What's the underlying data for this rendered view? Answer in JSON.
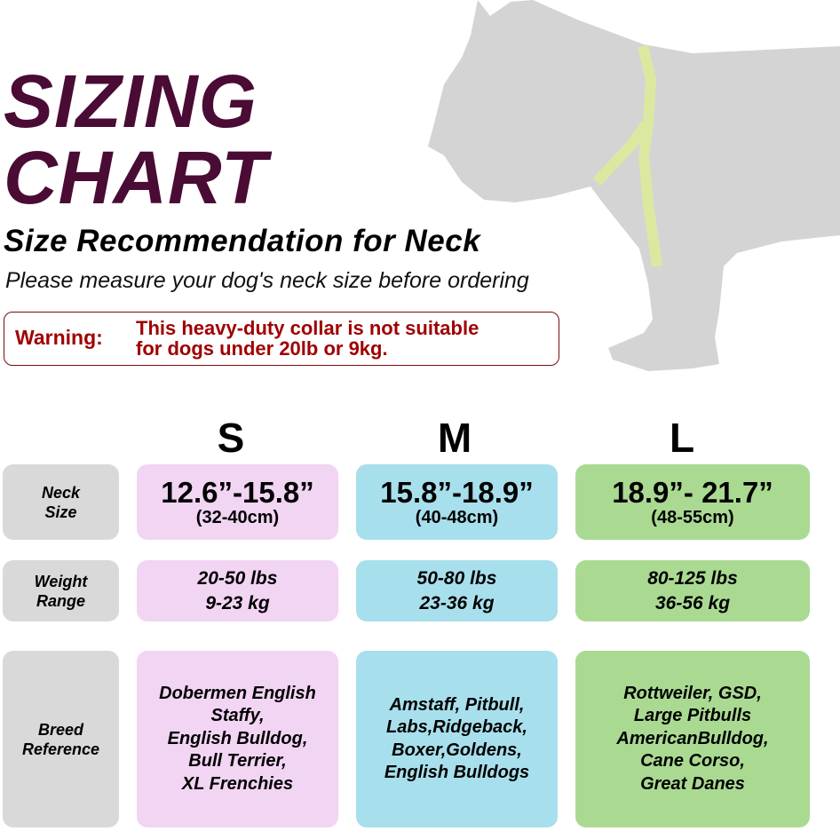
{
  "header": {
    "title_line1": "SIZING",
    "title_line2": "CHART",
    "subtitle": "Size Recommendation for Neck",
    "instruction": "Please measure your dog's neck size before ordering"
  },
  "warning": {
    "label": "Warning:",
    "text_line1": "This heavy-duty collar is not suitable",
    "text_line2": "for dogs under 20lb or 9kg.",
    "color": "#a00000"
  },
  "illustration": {
    "icon": "dog-silhouette-with-measuring-tape",
    "tape_color": "#dbe9a0",
    "dog_color": "#d4d4d4"
  },
  "row_labels": {
    "neck": [
      "Neck",
      "Size"
    ],
    "weight": [
      "Weight",
      "Range"
    ],
    "breed": [
      "Breed",
      "Reference"
    ]
  },
  "sizes": [
    {
      "name": "S",
      "color": "#f2d4f3",
      "neck_in": "12.6”-15.8”",
      "neck_cm": "(32-40cm)",
      "weight_lbs": "20-50 lbs",
      "weight_kg": "9-23 kg",
      "breeds": [
        "Dobermen English",
        "Staffy,",
        "English Bulldog,",
        "Bull Terrier,",
        "XL Frenchies"
      ]
    },
    {
      "name": "M",
      "color": "#a8dfec",
      "neck_in": "15.8”-18.9”",
      "neck_cm": "(40-48cm)",
      "weight_lbs": "50-80 lbs",
      "weight_kg": "23-36 kg",
      "breeds": [
        "Amstaff, Pitbull,",
        "Labs,Ridgeback,",
        "Boxer,Goldens,",
        "English Bulldogs"
      ]
    },
    {
      "name": "L",
      "color": "#aada92",
      "neck_in": "18.9”- 21.7”",
      "neck_cm": "(48-55cm)",
      "weight_lbs": "80-125 lbs",
      "weight_kg": "36-56 kg",
      "breeds": [
        "Rottweiler, GSD,",
        "Large Pitbulls",
        "AmericanBulldog,",
        "Cane Corso,",
        "Great Danes"
      ]
    }
  ]
}
